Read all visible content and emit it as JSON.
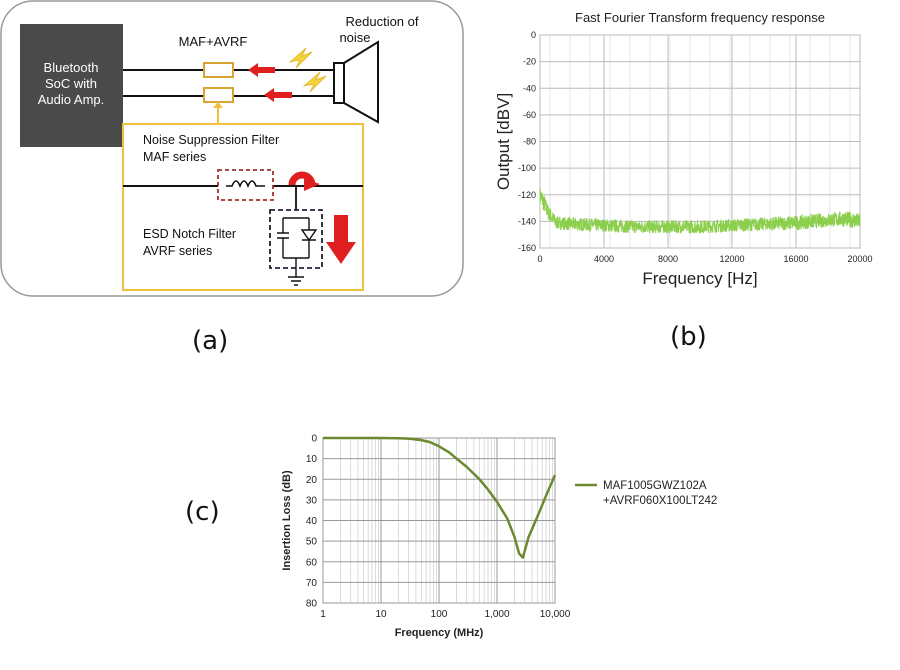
{
  "panel_a": {
    "soc_label_lines": [
      "Bluetooth",
      "SoC with",
      "Audio Amp."
    ],
    "component_label": "MAF+AVRF",
    "noise_label_lines": [
      "Reduction of",
      "noise"
    ],
    "maf_label_lines": [
      "Noise Suppression Filter",
      "MAF series"
    ],
    "avrf_label_lines": [
      "ESD Notch Filter",
      "AVRF series"
    ],
    "colors": {
      "soc_box": "#4a4a4a",
      "highlight": "#f0c040",
      "arrow": "#e02020",
      "bolt": "#f5d33a"
    }
  },
  "captions": {
    "a": "(a)",
    "b": "(b)",
    "c": "(c)"
  },
  "chart_data": [
    {
      "type": "line",
      "title": "Fast Fourier Transform frequency response",
      "xlabel": "Frequency [Hz]",
      "ylabel": "Output [dBV]",
      "xlim": [
        0,
        20000
      ],
      "ylim": [
        -160,
        0
      ],
      "x_ticks": [
        "0",
        "4000",
        "8000",
        "12000",
        "16000",
        "20000"
      ],
      "y_ticks": [
        "0",
        "-20",
        "-40",
        "-60",
        "-80",
        "-100",
        "-120",
        "-140",
        "-160"
      ],
      "grid": true,
      "color": "#8ccf4d",
      "series": [
        {
          "x": [
            0,
            200,
            500,
            1000,
            2000,
            4000,
            6000,
            8000,
            10000,
            12000,
            14000,
            16000,
            18000,
            19000,
            20000
          ],
          "y": [
            -120,
            -125,
            -133,
            -141,
            -142,
            -143,
            -144,
            -144,
            -144,
            -143,
            -142,
            -141,
            -139,
            -138,
            -140
          ],
          "spread": [
            14,
            14,
            12,
            10,
            10,
            10,
            10,
            10,
            10,
            10,
            10,
            11,
            11,
            12,
            12
          ]
        }
      ]
    },
    {
      "type": "line",
      "xlabel": "Frequency  (MHz)",
      "ylabel": "Insertion Loss  (dB)",
      "x_scale": "log",
      "xlim": [
        1,
        10000
      ],
      "ylim": [
        0,
        80
      ],
      "y_inverted": true,
      "x_ticks": [
        "1",
        "10",
        "100",
        "1,000",
        "10,000"
      ],
      "y_ticks": [
        "0",
        "10",
        "20",
        "30",
        "40",
        "50",
        "60",
        "70",
        "80"
      ],
      "grid": true,
      "legend_position": "right",
      "series": [
        {
          "name": "MAF1005GWZ102A\n+AVRF060X100LT242",
          "color": "#6b8a2f",
          "x": [
            1,
            10,
            20,
            30,
            50,
            70,
            100,
            150,
            200,
            300,
            500,
            700,
            1000,
            1500,
            2000,
            2400,
            2800,
            3500,
            5000,
            7000,
            10000
          ],
          "y": [
            0,
            0,
            0.1,
            0.3,
            1,
            2,
            4,
            7,
            10,
            14,
            20,
            25,
            31,
            39,
            48,
            56,
            58,
            48,
            38,
            28,
            18
          ]
        }
      ]
    }
  ]
}
